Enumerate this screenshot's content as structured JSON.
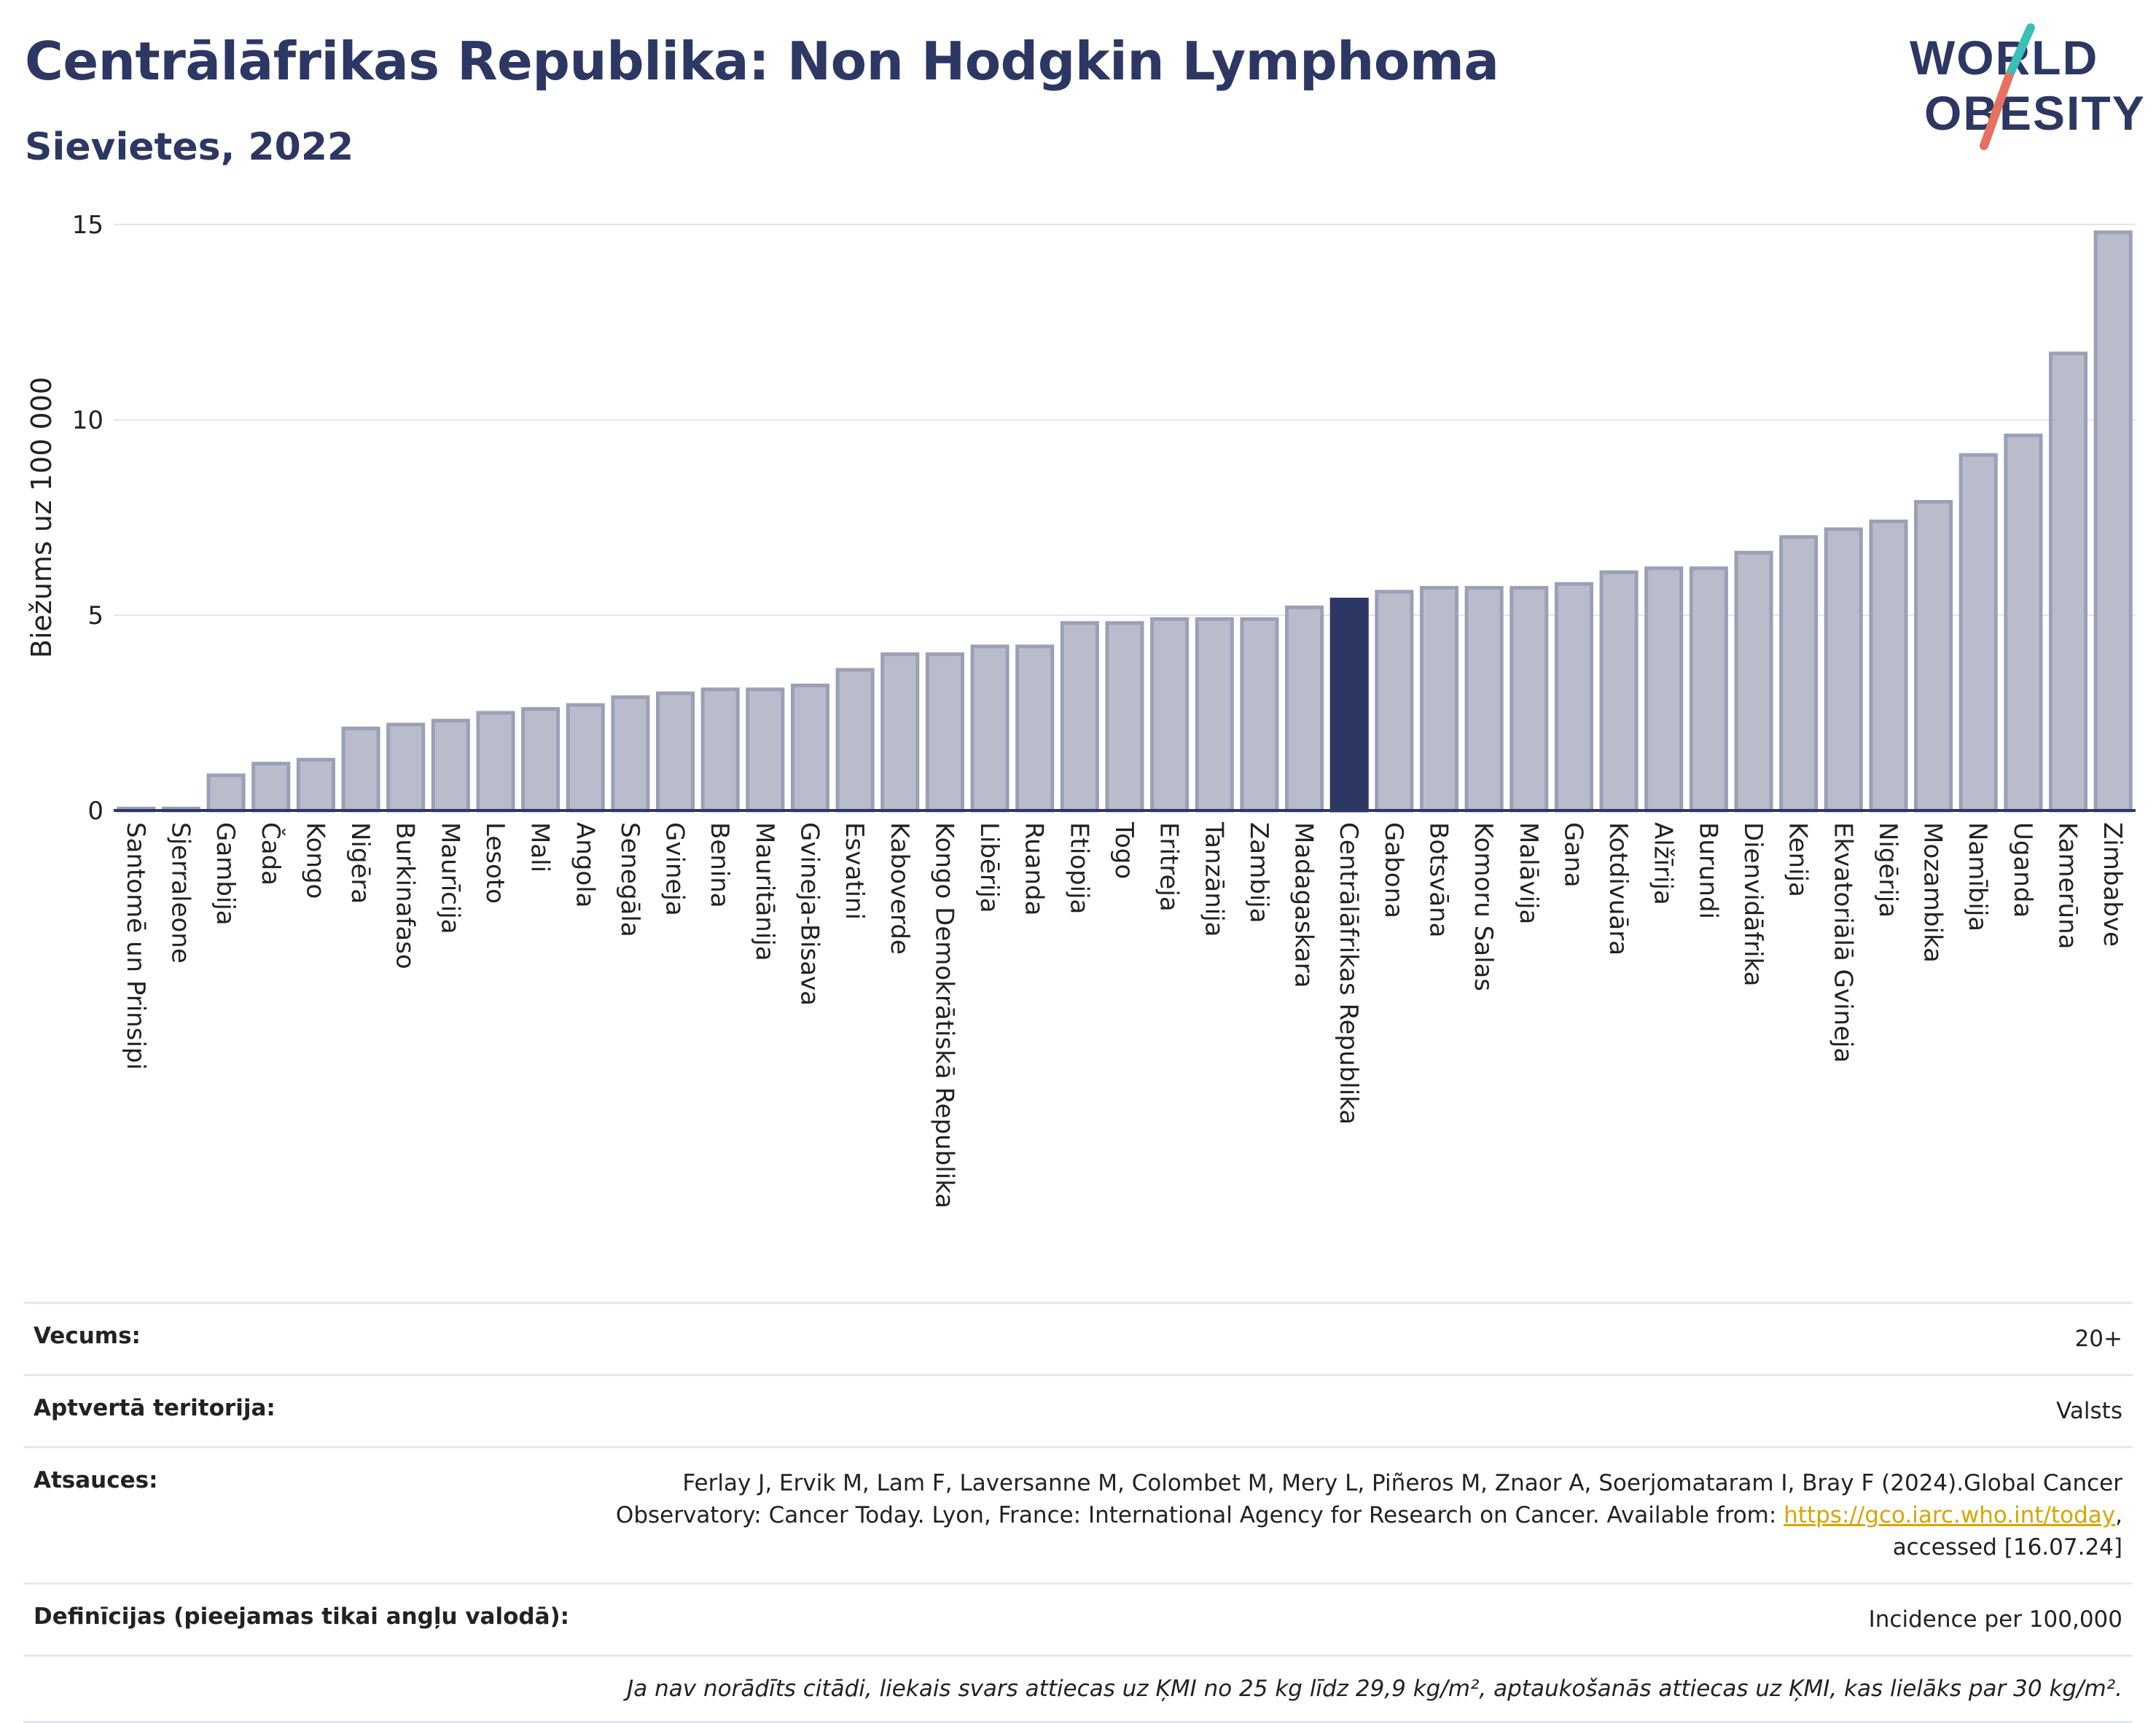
{
  "header": {
    "title": "Centrālāfrikas Republika: Non Hodgkin Lymphoma",
    "subtitle": "Sievietes, 2022"
  },
  "logo": {
    "line1": "WORLD",
    "line2": "OBESITY",
    "colors": {
      "text": "#2c3764",
      "slash_teal": "#3bbfb6",
      "slash_red": "#e8705e"
    }
  },
  "chart_data": {
    "type": "bar",
    "ylabel": "Biežums uz 100 000",
    "xlabel": "",
    "ylim": [
      0,
      15
    ],
    "yticks": [
      0,
      5,
      10,
      15
    ],
    "grid": true,
    "highlight": "Centrālāfrikas Republika",
    "colors": {
      "bar": "#b9bdcb",
      "bar_edge": "#9ba0b6",
      "highlight": "#2c3764",
      "grid": "#e3e6ee"
    },
    "categories": [
      "Santomē un Prinsipi",
      "Sjerraleone",
      "Gambija",
      "Čada",
      "Kongo",
      "Nigēra",
      "Burkinafaso",
      "Maurīcija",
      "Lesoto",
      "Mali",
      "Angola",
      "Senegāla",
      "Gvineja",
      "Benina",
      "Mauritānija",
      "Gvineja-Bisava",
      "Esvatini",
      "Kaboverde",
      "Kongo Demokrātiskā Republika",
      "Libērija",
      "Ruanda",
      "Etiopija",
      "Togo",
      "Eritreja",
      "Tanzānija",
      "Zambija",
      "Madagaskara",
      "Centrālāfrikas Republika",
      "Gabona",
      "Botsvāna",
      "Komoru Salas",
      "Malāvija",
      "Gana",
      "Kotdivuāra",
      "Alžīrija",
      "Burundi",
      "Dienvidāfrika",
      "Kenija",
      "Ekvatoriālā Gvineja",
      "Nigērija",
      "Mozambika",
      "Namībija",
      "Uganda",
      "Kamerūna",
      "Zimbabve"
    ],
    "values": [
      0.05,
      0.05,
      0.9,
      1.2,
      1.3,
      2.1,
      2.2,
      2.3,
      2.5,
      2.6,
      2.7,
      2.9,
      3.0,
      3.1,
      3.1,
      3.2,
      3.6,
      4.0,
      4.0,
      4.2,
      4.2,
      4.8,
      4.8,
      4.9,
      4.9,
      4.9,
      5.2,
      5.4,
      5.6,
      5.7,
      5.7,
      5.7,
      5.8,
      6.1,
      6.2,
      6.2,
      6.6,
      7.0,
      7.2,
      7.4,
      7.9,
      9.1,
      9.6,
      11.7,
      14.8
    ]
  },
  "info": {
    "age_label": "Vecums:",
    "age_value": "20+",
    "territory_label": "Aptvertā teritorija:",
    "territory_value": "Valsts",
    "references_label": "Atsauces:",
    "references_text1": "Ferlay J, Ervik M, Lam F, Laversanne M, Colombet M, Mery L, Piñeros M, Znaor A, Soerjomataram I, Bray F (2024).Global Cancer",
    "references_text2": "Observatory: Cancer Today. Lyon, France: International Agency for Research on Cancer. Available from: ",
    "references_link": "https://gco.iarc.who.int/today",
    "references_text3": ",",
    "references_text4": "accessed [16.07.24]",
    "definitions_label": "Definīcijas (pieejamas tikai angļu valodā):",
    "definitions_value": "Incidence per 100,000",
    "note": "Ja nav norādīts citādi, liekais svars attiecas uz ĶMI no 25 kg līdz 29,9 kg/m², aptaukošanās attiecas uz ĶMI, kas lielāks par 30 kg/m²."
  }
}
